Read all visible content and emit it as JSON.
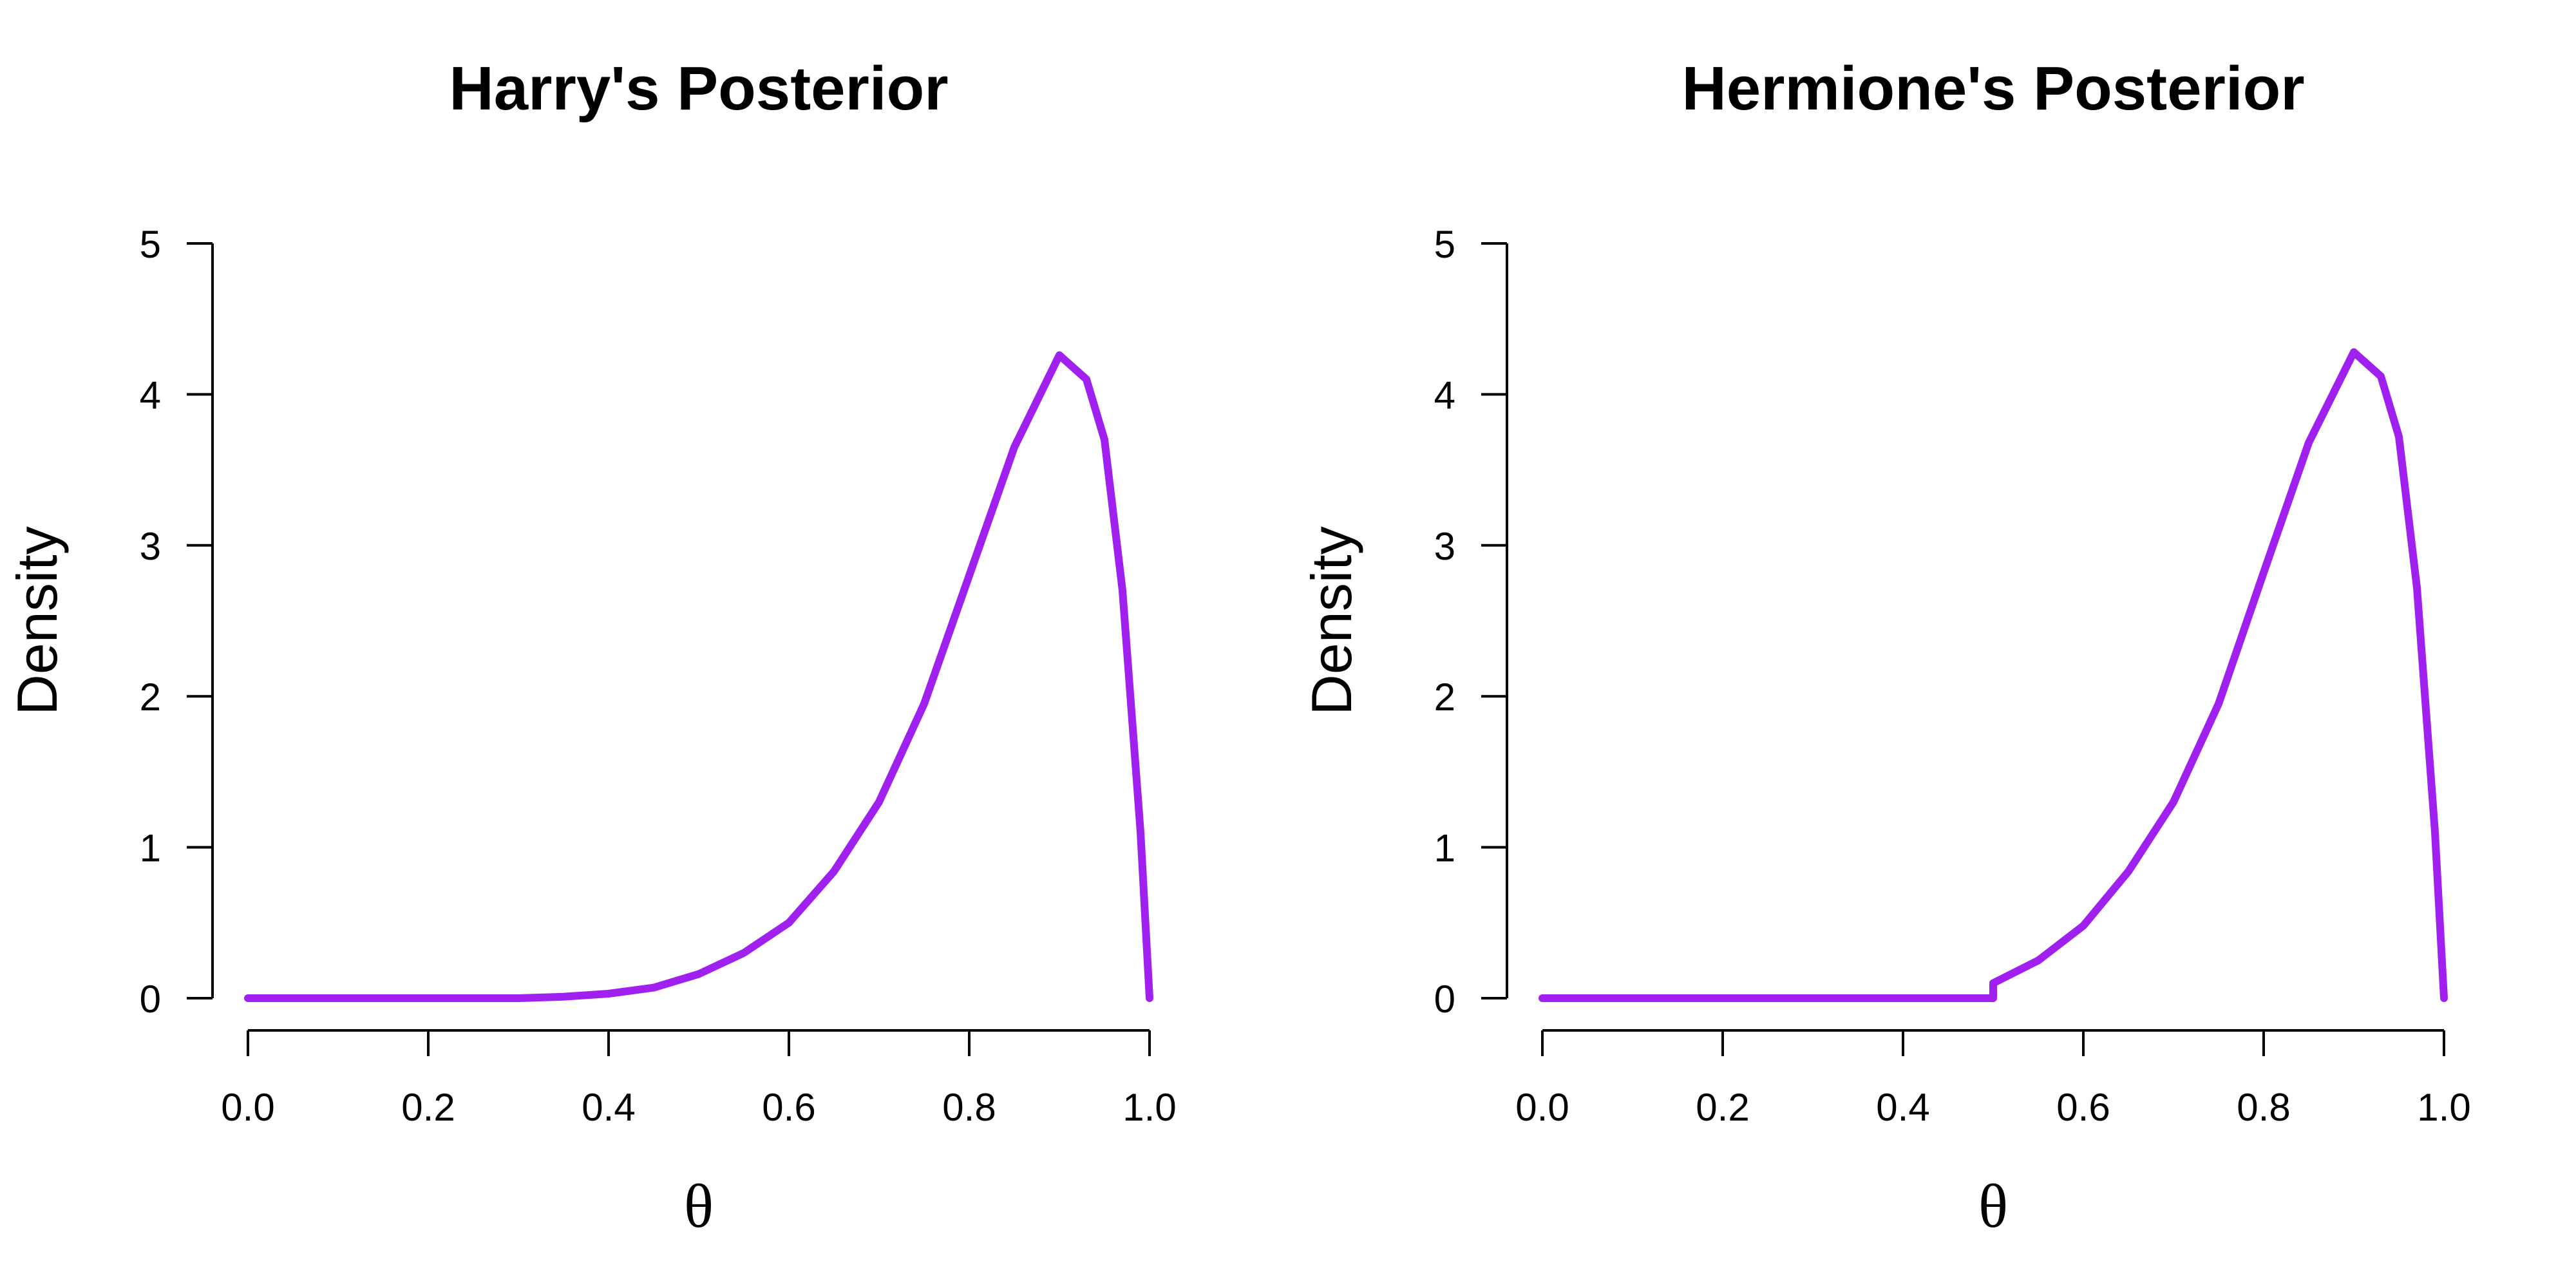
{
  "chart_data": [
    {
      "type": "line",
      "title": "Harry's Posterior",
      "xlabel": "θ",
      "ylabel": "Density",
      "xlim": [
        0,
        1
      ],
      "ylim": [
        0,
        5
      ],
      "xticks": [
        "0.0",
        "0.2",
        "0.4",
        "0.6",
        "0.8",
        "1.0"
      ],
      "yticks": [
        "0",
        "1",
        "2",
        "3",
        "4",
        "5"
      ],
      "line_color": "#A020F0",
      "series": [
        {
          "x": [
            0.0,
            0.1,
            0.2,
            0.3,
            0.35,
            0.4,
            0.45,
            0.5,
            0.55,
            0.6,
            0.65,
            0.7,
            0.75,
            0.8,
            0.85,
            0.9,
            0.93,
            0.95,
            0.97,
            0.99,
            1.0
          ],
          "values": [
            0.0,
            0.0,
            0.0,
            0.0,
            0.01,
            0.03,
            0.07,
            0.16,
            0.3,
            0.5,
            0.84,
            1.3,
            1.95,
            2.8,
            3.65,
            4.26,
            4.1,
            3.7,
            2.7,
            1.1,
            0.0
          ]
        }
      ]
    },
    {
      "type": "line",
      "title": "Hermione's Posterior",
      "xlabel": "θ",
      "ylabel": "Density",
      "xlim": [
        0,
        1
      ],
      "ylim": [
        0,
        5
      ],
      "xticks": [
        "0.0",
        "0.2",
        "0.4",
        "0.6",
        "0.8",
        "1.0"
      ],
      "yticks": [
        "0",
        "1",
        "2",
        "3",
        "4",
        "5"
      ],
      "line_color": "#A020F0",
      "series": [
        {
          "x": [
            0.0,
            0.1,
            0.2,
            0.3,
            0.4,
            0.5,
            0.5,
            0.55,
            0.6,
            0.65,
            0.7,
            0.75,
            0.8,
            0.85,
            0.9,
            0.93,
            0.95,
            0.97,
            0.99,
            1.0
          ],
          "values": [
            0.0,
            0.0,
            0.0,
            0.0,
            0.0,
            0.0,
            0.1,
            0.25,
            0.48,
            0.84,
            1.3,
            1.95,
            2.82,
            3.68,
            4.28,
            4.12,
            3.72,
            2.72,
            1.1,
            0.0
          ]
        }
      ]
    }
  ]
}
